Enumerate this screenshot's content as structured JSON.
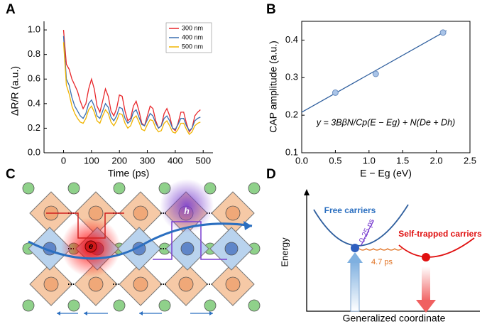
{
  "chart_data": [
    {
      "type": "line",
      "panel_label": "A",
      "xlabel": "Time (ps)",
      "ylabel": "ΔR/R (a.u.)",
      "xlim": [
        -70,
        535
      ],
      "xticks": [
        0,
        100,
        200,
        300,
        400,
        500
      ],
      "ylim": [
        0,
        1.07
      ],
      "yticks": [
        {
          "value": 0,
          "label": "0.0"
        },
        0.2,
        0.4,
        0.6,
        0.8,
        {
          "value": 1,
          "label": "1.0"
        }
      ],
      "legend": "upper right",
      "x": [
        0,
        10,
        20,
        30,
        40,
        50,
        60,
        70,
        80,
        90,
        100,
        110,
        120,
        130,
        140,
        150,
        160,
        170,
        180,
        190,
        200,
        210,
        220,
        230,
        240,
        250,
        260,
        270,
        280,
        290,
        300,
        310,
        320,
        330,
        340,
        350,
        360,
        370,
        380,
        390,
        400,
        410,
        420,
        430,
        440,
        450,
        460,
        470,
        480,
        490
      ],
      "series": [
        {
          "name": "300 nm",
          "color": "#e8262a",
          "values": [
            1.0,
            0.72,
            0.68,
            0.6,
            0.55,
            0.5,
            0.42,
            0.36,
            0.4,
            0.52,
            0.6,
            0.52,
            0.38,
            0.33,
            0.42,
            0.52,
            0.46,
            0.34,
            0.3,
            0.36,
            0.47,
            0.46,
            0.34,
            0.26,
            0.28,
            0.38,
            0.42,
            0.34,
            0.24,
            0.22,
            0.3,
            0.38,
            0.36,
            0.26,
            0.2,
            0.22,
            0.32,
            0.36,
            0.3,
            0.2,
            0.18,
            0.24,
            0.33,
            0.33,
            0.24,
            0.17,
            0.2,
            0.3,
            0.33,
            0.35
          ]
        },
        {
          "name": "400 nm",
          "color": "#3a6fb0",
          "values": [
            0.95,
            0.6,
            0.55,
            0.45,
            0.38,
            0.34,
            0.3,
            0.28,
            0.32,
            0.4,
            0.43,
            0.38,
            0.3,
            0.28,
            0.34,
            0.4,
            0.37,
            0.29,
            0.26,
            0.3,
            0.37,
            0.36,
            0.28,
            0.24,
            0.26,
            0.33,
            0.35,
            0.29,
            0.23,
            0.22,
            0.27,
            0.32,
            0.3,
            0.24,
            0.2,
            0.22,
            0.28,
            0.3,
            0.26,
            0.2,
            0.19,
            0.23,
            0.28,
            0.28,
            0.22,
            0.18,
            0.2,
            0.26,
            0.28,
            0.29
          ]
        },
        {
          "name": "500 nm",
          "color": "#f0b400",
          "values": [
            0.9,
            0.55,
            0.48,
            0.38,
            0.32,
            0.28,
            0.25,
            0.24,
            0.28,
            0.35,
            0.38,
            0.33,
            0.26,
            0.24,
            0.3,
            0.35,
            0.32,
            0.25,
            0.22,
            0.26,
            0.32,
            0.31,
            0.24,
            0.2,
            0.22,
            0.28,
            0.3,
            0.25,
            0.19,
            0.18,
            0.23,
            0.27,
            0.26,
            0.2,
            0.17,
            0.18,
            0.24,
            0.26,
            0.22,
            0.17,
            0.16,
            0.19,
            0.24,
            0.24,
            0.19,
            0.15,
            0.17,
            0.22,
            0.24,
            0.25
          ]
        }
      ]
    },
    {
      "type": "scatter",
      "panel_label": "B",
      "xlabel": "E − Eg (eV)",
      "ylabel": "CAP amplitude (a.u.)",
      "annotation": "y = 3BβN/Cp(E − Eg) + N(De + Dh)",
      "xlim": [
        0,
        2.5
      ],
      "xticks": [
        {
          "value": 0,
          "label": "0.0"
        },
        0.5,
        {
          "value": 1,
          "label": "1.0"
        },
        1.5,
        {
          "value": 2,
          "label": "2.0"
        },
        2.5
      ],
      "ylim": [
        0.1,
        0.45
      ],
      "yticks": [
        0.1,
        0.2,
        0.3,
        0.4
      ],
      "x": [
        0.5,
        1.1,
        2.1
      ],
      "values": [
        0.26,
        0.31,
        0.42
      ],
      "color": "#a9c4e8",
      "fit": {
        "x": [
          0,
          2.15
        ],
        "values": [
          0.208,
          0.425
        ],
        "color": "#2f5f9e"
      }
    }
  ],
  "diagrams": {
    "C": {
      "panel_label": "C",
      "electron": "e",
      "hole": "h"
    },
    "D": {
      "panel_label": "D",
      "y_axis": "Energy",
      "x_axis": "Generalized coordinate",
      "free": "Free carriers",
      "trapped": "Self-trapped carriers",
      "fast": "0.25 ps",
      "slow": "4.7 ps"
    }
  }
}
